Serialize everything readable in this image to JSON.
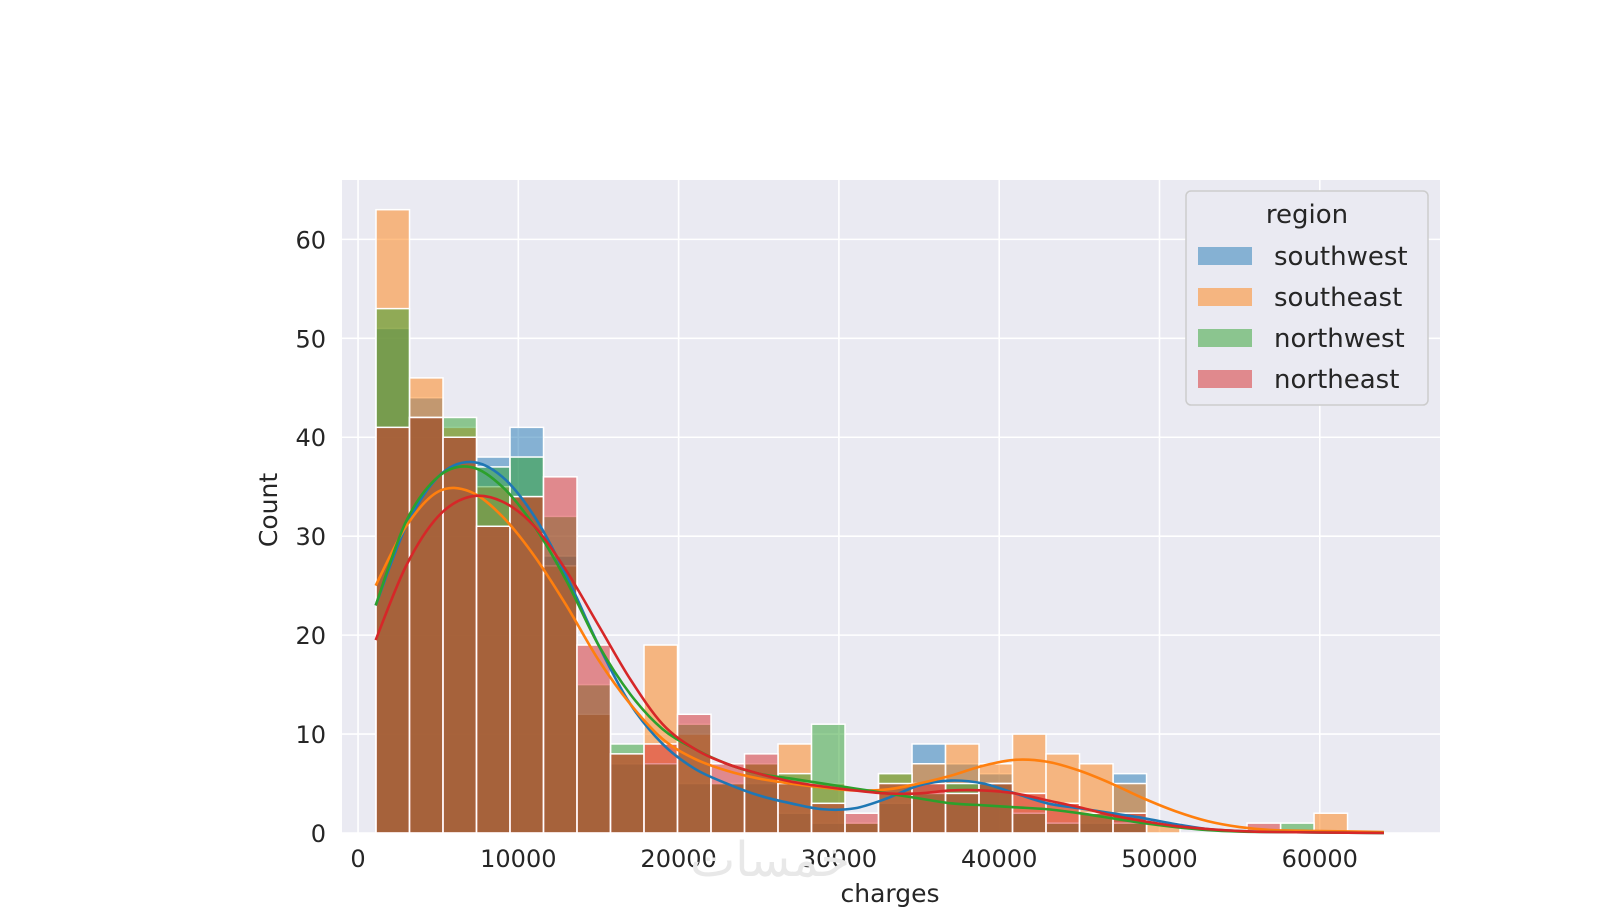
{
  "watermark": "خمسات",
  "chart_data": {
    "type": "histogram",
    "xlabel": "charges",
    "ylabel": "Count",
    "xlim": [
      -1000,
      67500
    ],
    "ylim": [
      0,
      66
    ],
    "xticks": [
      0,
      10000,
      20000,
      30000,
      40000,
      50000,
      60000
    ],
    "yticks": [
      0,
      10,
      20,
      30,
      40,
      50,
      60
    ],
    "bin_start": 1122,
    "bin_width": 2090,
    "grid": true,
    "legend": {
      "title": "region",
      "placement": "top-right"
    },
    "series": [
      {
        "name": "southwest",
        "color": "#1f77b4",
        "values": [
          51,
          44,
          40,
          38,
          41,
          28,
          12,
          7,
          7,
          5,
          5,
          5,
          2,
          1,
          1,
          3,
          9,
          7,
          6,
          2,
          1,
          1,
          6,
          0,
          0,
          0,
          0,
          0,
          0
        ],
        "kde": [
          [
            1100,
            23
          ],
          [
            3000,
            31
          ],
          [
            5000,
            36
          ],
          [
            7000,
            37.5
          ],
          [
            9000,
            36
          ],
          [
            11000,
            32
          ],
          [
            13000,
            26
          ],
          [
            15000,
            19
          ],
          [
            17000,
            13
          ],
          [
            19000,
            9
          ],
          [
            21000,
            6.5
          ],
          [
            23000,
            5
          ],
          [
            25000,
            3.8
          ],
          [
            27000,
            3
          ],
          [
            29000,
            2.4
          ],
          [
            31000,
            2.5
          ],
          [
            33000,
            3.5
          ],
          [
            35000,
            4.8
          ],
          [
            37000,
            5.3
          ],
          [
            39000,
            5
          ],
          [
            41000,
            4
          ],
          [
            43000,
            3
          ],
          [
            45000,
            2.5
          ],
          [
            47000,
            2
          ],
          [
            49000,
            1.5
          ],
          [
            51000,
            0.9
          ],
          [
            53000,
            0.4
          ],
          [
            55000,
            0.2
          ],
          [
            57000,
            0.1
          ],
          [
            60000,
            0.05
          ],
          [
            64000,
            0
          ]
        ]
      },
      {
        "name": "southeast",
        "color": "#ff7f0e",
        "values": [
          63,
          46,
          41,
          35,
          34,
          27,
          12,
          8,
          19,
          10,
          5,
          7,
          9,
          5,
          1,
          6,
          7,
          9,
          7,
          10,
          8,
          7,
          5,
          1,
          0,
          0,
          0,
          0,
          2
        ],
        "kde": [
          [
            1100,
            25
          ],
          [
            3000,
            31
          ],
          [
            5000,
            34.5
          ],
          [
            7000,
            34.5
          ],
          [
            9000,
            32
          ],
          [
            11000,
            28
          ],
          [
            13000,
            23
          ],
          [
            15000,
            17.5
          ],
          [
            17000,
            13
          ],
          [
            19000,
            9.5
          ],
          [
            21000,
            7.5
          ],
          [
            23000,
            6.3
          ],
          [
            25000,
            5.5
          ],
          [
            27000,
            5
          ],
          [
            29000,
            4.6
          ],
          [
            31000,
            4.3
          ],
          [
            33000,
            4.4
          ],
          [
            35000,
            5
          ],
          [
            37000,
            5.8
          ],
          [
            39000,
            6.8
          ],
          [
            41000,
            7.4
          ],
          [
            43000,
            7.2
          ],
          [
            45000,
            6.3
          ],
          [
            47000,
            5
          ],
          [
            49000,
            3.5
          ],
          [
            51000,
            2.2
          ],
          [
            53000,
            1.2
          ],
          [
            55000,
            0.6
          ],
          [
            57000,
            0.3
          ],
          [
            60000,
            0.2
          ],
          [
            64000,
            0.1
          ]
        ]
      },
      {
        "name": "northwest",
        "color": "#2ca02c",
        "values": [
          53,
          42,
          42,
          37,
          38,
          32,
          15,
          9,
          7,
          11,
          5,
          7,
          6,
          11,
          1,
          6,
          4,
          5,
          5,
          2,
          1,
          2,
          1,
          0,
          0,
          0,
          0,
          1,
          0
        ],
        "kde": [
          [
            1100,
            23
          ],
          [
            3000,
            31.5
          ],
          [
            5000,
            36
          ],
          [
            7000,
            37
          ],
          [
            9000,
            35
          ],
          [
            11000,
            31
          ],
          [
            13000,
            25.5
          ],
          [
            15000,
            19
          ],
          [
            17000,
            14
          ],
          [
            19000,
            10.5
          ],
          [
            21000,
            8.5
          ],
          [
            23000,
            7
          ],
          [
            25000,
            6
          ],
          [
            27000,
            5.5
          ],
          [
            29000,
            5
          ],
          [
            31000,
            4.5
          ],
          [
            33000,
            4
          ],
          [
            35000,
            3.5
          ],
          [
            37000,
            3
          ],
          [
            39000,
            2.8
          ],
          [
            41000,
            2.6
          ],
          [
            43000,
            2.4
          ],
          [
            45000,
            2
          ],
          [
            47000,
            1.5
          ],
          [
            49000,
            1
          ],
          [
            51000,
            0.6
          ],
          [
            53000,
            0.3
          ],
          [
            55000,
            0.15
          ],
          [
            57000,
            0.1
          ],
          [
            60000,
            0.05
          ],
          [
            64000,
            0
          ]
        ]
      },
      {
        "name": "northeast",
        "color": "#d62728",
        "values": [
          41,
          42,
          40,
          31,
          34,
          36,
          19,
          8,
          9,
          12,
          7,
          8,
          5,
          3,
          2,
          5,
          5,
          4,
          5,
          4,
          3,
          2,
          2,
          0,
          0,
          0,
          1,
          0,
          0
        ],
        "kde": [
          [
            1100,
            19.5
          ],
          [
            3000,
            27
          ],
          [
            5000,
            32
          ],
          [
            7000,
            34
          ],
          [
            9000,
            33.5
          ],
          [
            11000,
            31
          ],
          [
            13000,
            26.5
          ],
          [
            15000,
            21
          ],
          [
            17000,
            15.5
          ],
          [
            19000,
            11
          ],
          [
            21000,
            8.5
          ],
          [
            23000,
            7
          ],
          [
            25000,
            6
          ],
          [
            27000,
            5.2
          ],
          [
            29000,
            4.7
          ],
          [
            31000,
            4.3
          ],
          [
            33000,
            4
          ],
          [
            35000,
            4
          ],
          [
            37000,
            4.3
          ],
          [
            39000,
            4.3
          ],
          [
            41000,
            4
          ],
          [
            43000,
            3.3
          ],
          [
            45000,
            2.6
          ],
          [
            47000,
            1.8
          ],
          [
            49000,
            1.2
          ],
          [
            51000,
            0.7
          ],
          [
            53000,
            0.4
          ],
          [
            55000,
            0.2
          ],
          [
            57000,
            0.1
          ],
          [
            60000,
            0.05
          ],
          [
            64000,
            0
          ]
        ]
      }
    ]
  }
}
